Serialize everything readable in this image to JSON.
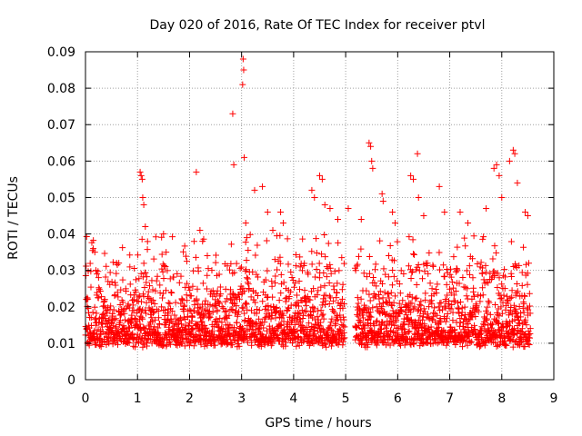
{
  "chart_data": {
    "type": "scatter",
    "title": "Day 020 of 2016, Rate Of TEC Index for receiver ptvl",
    "xlabel": "GPS time / hours",
    "ylabel": "ROTI / TECUs",
    "xlim": [
      0,
      9
    ],
    "ylim": [
      0,
      0.09
    ],
    "xticks": [
      "0",
      "1",
      "2",
      "3",
      "4",
      "5",
      "6",
      "7",
      "8",
      "9"
    ],
    "yticks": [
      "0",
      "0.01",
      "0.02",
      "0.03",
      "0.04",
      "0.05",
      "0.06",
      "0.07",
      "0.08",
      "0.09"
    ],
    "grid": true,
    "marker": "+",
    "color": "#ff0000",
    "data_x_range": [
      0,
      8.55
    ],
    "baseline_band": [
      0.006,
      0.025
    ],
    "gap": [
      4.98,
      5.18
    ],
    "series": [
      {
        "name": "ptvl",
        "points": [
          [
            0.15,
            0.036
          ],
          [
            0.18,
            0.035
          ],
          [
            0.2,
            0.03
          ],
          [
            0.22,
            0.029
          ],
          [
            1.05,
            0.057
          ],
          [
            1.07,
            0.056
          ],
          [
            1.09,
            0.055
          ],
          [
            1.1,
            0.05
          ],
          [
            1.12,
            0.048
          ],
          [
            1.15,
            0.042
          ],
          [
            1.5,
            0.04
          ],
          [
            1.55,
            0.035
          ],
          [
            2.13,
            0.057
          ],
          [
            2.2,
            0.041
          ],
          [
            2.25,
            0.038
          ],
          [
            2.83,
            0.073
          ],
          [
            2.85,
            0.059
          ],
          [
            3.03,
            0.088
          ],
          [
            3.04,
            0.085
          ],
          [
            3.02,
            0.081
          ],
          [
            3.05,
            0.061
          ],
          [
            3.08,
            0.043
          ],
          [
            3.1,
            0.039
          ],
          [
            3.25,
            0.052
          ],
          [
            3.4,
            0.053
          ],
          [
            3.5,
            0.046
          ],
          [
            3.6,
            0.041
          ],
          [
            3.75,
            0.046
          ],
          [
            3.8,
            0.043
          ],
          [
            4.35,
            0.052
          ],
          [
            4.4,
            0.05
          ],
          [
            4.5,
            0.056
          ],
          [
            4.55,
            0.055
          ],
          [
            4.6,
            0.048
          ],
          [
            4.7,
            0.047
          ],
          [
            4.85,
            0.044
          ],
          [
            5.05,
            0.047
          ],
          [
            5.3,
            0.044
          ],
          [
            5.45,
            0.065
          ],
          [
            5.48,
            0.064
          ],
          [
            5.5,
            0.06
          ],
          [
            5.52,
            0.058
          ],
          [
            5.7,
            0.051
          ],
          [
            5.72,
            0.049
          ],
          [
            5.9,
            0.046
          ],
          [
            5.95,
            0.043
          ],
          [
            6.25,
            0.056
          ],
          [
            6.3,
            0.055
          ],
          [
            6.38,
            0.062
          ],
          [
            6.4,
            0.05
          ],
          [
            6.5,
            0.045
          ],
          [
            6.8,
            0.053
          ],
          [
            6.9,
            0.046
          ],
          [
            7.2,
            0.046
          ],
          [
            7.35,
            0.043
          ],
          [
            7.7,
            0.047
          ],
          [
            7.85,
            0.058
          ],
          [
            7.9,
            0.059
          ],
          [
            7.95,
            0.056
          ],
          [
            8.0,
            0.05
          ],
          [
            8.15,
            0.06
          ],
          [
            8.22,
            0.063
          ],
          [
            8.25,
            0.062
          ],
          [
            8.3,
            0.054
          ],
          [
            8.45,
            0.046
          ],
          [
            8.5,
            0.045
          ]
        ]
      }
    ]
  }
}
